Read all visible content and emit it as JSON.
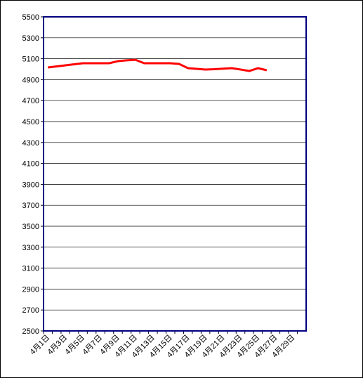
{
  "chart_data": {
    "type": "line",
    "categories": [
      "4月1日",
      null,
      "4月3日",
      null,
      "4月5日",
      null,
      "4月7日",
      null,
      "4月9日",
      null,
      "4月11日",
      null,
      "4月13日",
      null,
      "4月15日",
      null,
      "4月17日",
      null,
      "4月19日",
      null,
      "4月21日",
      null,
      "4月23日",
      null,
      "4月25日",
      null,
      "4月27日",
      null,
      "4月29日",
      null
    ],
    "series": [
      {
        "color": "#ff0000",
        "values": [
          5017,
          5027,
          5037,
          5047,
          5057,
          5057,
          5057,
          5057,
          5077,
          5085,
          5090,
          5057,
          5057,
          5057,
          5057,
          5050,
          5010,
          5003,
          4997,
          5000,
          5005,
          5010,
          4997,
          4983,
          5010,
          4990,
          null,
          null,
          null,
          null
        ]
      }
    ],
    "ylim": [
      2500,
      5500
    ],
    "yticks": [
      2500,
      2700,
      2900,
      3100,
      3300,
      3500,
      3700,
      3900,
      4100,
      4300,
      4500,
      4700,
      4900,
      5100,
      5300,
      5500
    ],
    "grid": true
  }
}
